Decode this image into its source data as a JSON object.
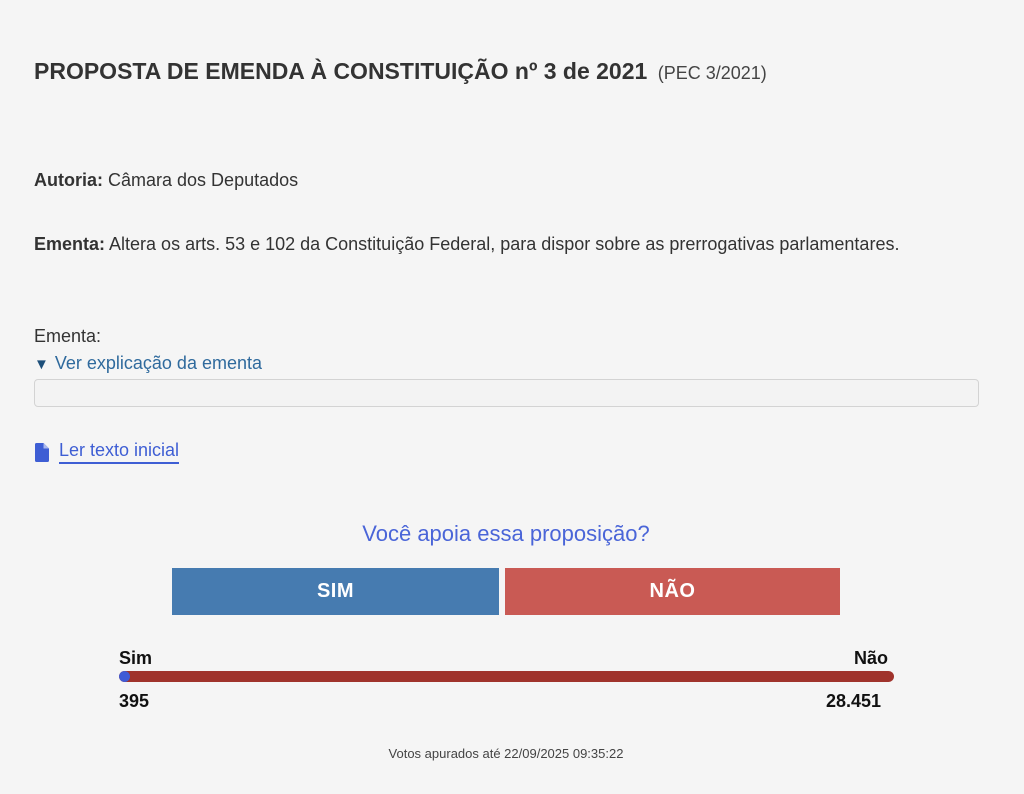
{
  "header": {
    "title": "PROPOSTA DE EMENDA À CONSTITUIÇÃO nº 3 de 2021",
    "short_id": "(PEC 3/2021)"
  },
  "autoria": {
    "label": "Autoria:",
    "value": "Câmara dos Deputados"
  },
  "ementa": {
    "label": "Ementa:",
    "value": "Altera os arts. 53 e 102 da Constituição Federal, para dispor sobre as prerrogativas parlamentares."
  },
  "explicacao": {
    "label": "Ementa:",
    "toggle_icon": "▼",
    "toggle_label": "Ver explicação da ementa"
  },
  "documento": {
    "icon": "document-icon",
    "link_label": "Ler texto inicial"
  },
  "poll": {
    "question": "Você apoia essa proposição?",
    "yes_button": "SIM",
    "no_button": "NÃO",
    "yes_label": "Sim",
    "no_label": "Não",
    "yes_count": "395",
    "no_count": "28.451",
    "yes_fraction": 0.0137,
    "footnote": "Votos apurados até 22/09/2025 09:35:22"
  },
  "colors": {
    "background": "#f5f5f5",
    "link": "#3e5ed4",
    "sim_button": "#467bb0",
    "nao_button": "#c95a54",
    "bar_sim": "#3f5bd6",
    "bar_nao": "#a0332c"
  }
}
